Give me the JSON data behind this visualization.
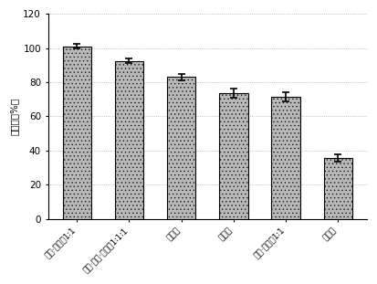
{
  "categories": [
    "腐液·蜗石＝1∶1",
    "腐液·蜗石·园土＝1∶1∶1",
    "纯蜗石",
    "纯腐液",
    "腐液·园土＝1∶1",
    "纯园土"
  ],
  "values": [
    101.0,
    92.5,
    83.0,
    73.5,
    71.5,
    35.5
  ],
  "errors": [
    1.5,
    1.5,
    2.0,
    2.5,
    2.5,
    2.0
  ],
  "bar_color": "#b8b8b8",
  "ylabel": "成活率（%）",
  "ylim": [
    0,
    120
  ],
  "yticks": [
    0,
    20,
    40,
    60,
    80,
    100,
    120
  ],
  "background_color": "#ffffff",
  "grid_color": "#999999"
}
